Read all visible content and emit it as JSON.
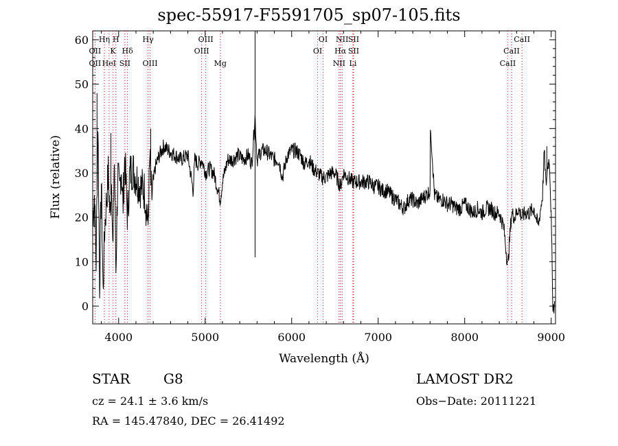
{
  "title": "spec-55917-F5591705_sp07-105.fits",
  "info": {
    "object_type": "STAR",
    "spectral_class": "G8",
    "cz": "cz = 24.1 ± 3.6 km/s",
    "radec": "RA = 145.47840, DEC =  26.41492",
    "survey": "LAMOST DR2",
    "obs_date": "Obs−Date: 20111221"
  },
  "chart_data": {
    "type": "line",
    "title": "spec-55917-F5591705_sp07-105.fits",
    "xlabel": "Wavelength (Å)",
    "ylabel": "Flux (relative)",
    "xlim": [
      3700,
      9050
    ],
    "ylim": [
      -4,
      62
    ],
    "xticks": [
      4000,
      5000,
      6000,
      7000,
      8000,
      9000
    ],
    "yticks": [
      0,
      10,
      20,
      30,
      40,
      50,
      60
    ],
    "line_color": "#000000",
    "marker_color": "#cc0000",
    "spectrum": {
      "x": [
        3700,
        3720,
        3740,
        3760,
        3780,
        3800,
        3820,
        3840,
        3860,
        3880,
        3900,
        3920,
        3934,
        3950,
        3968,
        3990,
        4010,
        4030,
        4050,
        4070,
        4102,
        4130,
        4160,
        4200,
        4250,
        4300,
        4340,
        4360,
        4380,
        4420,
        4470,
        4520,
        4580,
        4650,
        4720,
        4800,
        4861,
        4880,
        4920,
        4960,
        5007,
        5050,
        5100,
        5150,
        5175,
        5200,
        5260,
        5320,
        5380,
        5440,
        5500,
        5540,
        5577,
        5600,
        5650,
        5700,
        5750,
        5800,
        5850,
        5893,
        5950,
        6000,
        6050,
        6100,
        6150,
        6200,
        6250,
        6300,
        6350,
        6400,
        6450,
        6500,
        6563,
        6600,
        6650,
        6700,
        6750,
        6800,
        6850,
        6900,
        6950,
        7000,
        7050,
        7100,
        7150,
        7200,
        7250,
        7300,
        7350,
        7400,
        7450,
        7500,
        7550,
        7600,
        7605,
        7650,
        7700,
        7750,
        7800,
        7850,
        7900,
        7950,
        8000,
        8050,
        8100,
        8150,
        8200,
        8250,
        8300,
        8350,
        8400,
        8450,
        8498,
        8542,
        8580,
        8620,
        8662,
        8700,
        8750,
        8800,
        8850,
        8900,
        8920,
        8940,
        8960,
        8980,
        9000,
        9020,
        9040
      ],
      "y": [
        20,
        25,
        10,
        42,
        5,
        28,
        3,
        18,
        24,
        30,
        20,
        30,
        10,
        35,
        8,
        30,
        25,
        32,
        22,
        34,
        20,
        30,
        31,
        29,
        27,
        26,
        18,
        33,
        24,
        31,
        34,
        36,
        35,
        34,
        33,
        34,
        26,
        33,
        32,
        33,
        30,
        31,
        30,
        26,
        24,
        28,
        33,
        33,
        34,
        33,
        34,
        32,
        43,
        33,
        35,
        35,
        34,
        33,
        33,
        29,
        34,
        35,
        35,
        34,
        32,
        33,
        31,
        30,
        29,
        29,
        30,
        30,
        27,
        30,
        29,
        28,
        28,
        28,
        28,
        28,
        27,
        27,
        26,
        26,
        25,
        24,
        23,
        22,
        24,
        24,
        23,
        24,
        25,
        26,
        41,
        25,
        24,
        24,
        23,
        23,
        22,
        22,
        23,
        22,
        21,
        22,
        21,
        22,
        22,
        21,
        21,
        18,
        9,
        21,
        20,
        22,
        20,
        21,
        21,
        22,
        18,
        25,
        35,
        27,
        32,
        33,
        20,
        0,
        0
      ]
    },
    "spikes": [
      {
        "x": 3750,
        "y": 48
      },
      {
        "x": 3910,
        "y": 39
      },
      {
        "x": 4370,
        "y": 40
      },
      {
        "x": 5577,
        "y": 62
      },
      {
        "x": 5577,
        "y": 11
      },
      {
        "x": 7605,
        "y": 41
      },
      {
        "x": 8950,
        "y": 36
      }
    ],
    "lines": [
      {
        "x": 3727,
        "row": 2,
        "label": "OII"
      },
      {
        "x": 3727,
        "row": 3,
        "label": "OII"
      },
      {
        "x": 3835,
        "row": 1,
        "label": "Hη"
      },
      {
        "x": 3889,
        "row": 3,
        "label": "HeI"
      },
      {
        "x": 3934,
        "row": 2,
        "label": "K"
      },
      {
        "x": 3968,
        "row": 1,
        "label": "H"
      },
      {
        "x": 4072,
        "row": 3,
        "label": "SII"
      },
      {
        "x": 4102,
        "row": 2,
        "label": "Hδ"
      },
      {
        "x": 4340,
        "row": 1,
        "label": "Hγ"
      },
      {
        "x": 4363,
        "row": 3,
        "label": "OIII"
      },
      {
        "x": 4959,
        "row": 2,
        "label": "OIII"
      },
      {
        "x": 5007,
        "row": 1,
        "label": "OIII"
      },
      {
        "x": 5175,
        "row": 3,
        "label": "Mg"
      },
      {
        "x": 6300,
        "row": 2,
        "label": "OI"
      },
      {
        "x": 6363,
        "row": 1,
        "label": "OI"
      },
      {
        "x": 6548,
        "row": 3,
        "label": "NII"
      },
      {
        "x": 6563,
        "row": 2,
        "label": "Hα"
      },
      {
        "x": 6583,
        "row": 1,
        "label": "NII"
      },
      {
        "x": 6716,
        "row": 1,
        "label": "SII"
      },
      {
        "x": 6716,
        "row": 2,
        "label": "SII"
      },
      {
        "x": 6708,
        "row": 3,
        "label": "Li"
      },
      {
        "x": 8498,
        "row": 3,
        "label": "CaII"
      },
      {
        "x": 8542,
        "row": 2,
        "label": "CaII"
      },
      {
        "x": 8662,
        "row": 1,
        "label": "CaII"
      }
    ]
  }
}
